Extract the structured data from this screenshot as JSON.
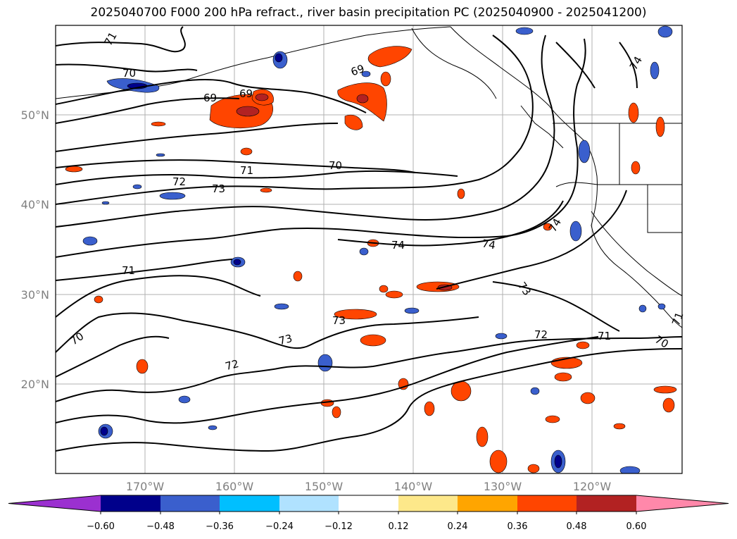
{
  "title": "2025040700 F000 200 hPa refract., river basin precipitation PC (2025040900 - 2025041200)",
  "map": {
    "lat_ticks": [
      "50°N",
      "40°N",
      "30°N",
      "20°N"
    ],
    "lon_ticks": [
      "170°W",
      "160°W",
      "150°W",
      "140°W",
      "130°W",
      "120°W"
    ],
    "gridlines": true,
    "contour_labels": [
      "71",
      "70",
      "69",
      "69",
      "69",
      "72",
      "73",
      "71",
      "70",
      "74",
      "74",
      "74",
      "71",
      "70",
      "73",
      "73",
      "72",
      "72",
      "71",
      "73",
      "74",
      "70",
      "71"
    ]
  },
  "colorbar": {
    "tick_labels": [
      "−0.60",
      "−0.48",
      "−0.36",
      "−0.24",
      "−0.12",
      "0.12",
      "0.24",
      "0.36",
      "0.48",
      "0.60"
    ],
    "colors": [
      "#9b30d0",
      "#00008b",
      "#3a5fcd",
      "#00bfff",
      "#b0e2ff",
      "#ffffff",
      "#fde88a",
      "#ffa500",
      "#ff4500",
      "#b22222",
      "#ff88aa"
    ]
  }
}
